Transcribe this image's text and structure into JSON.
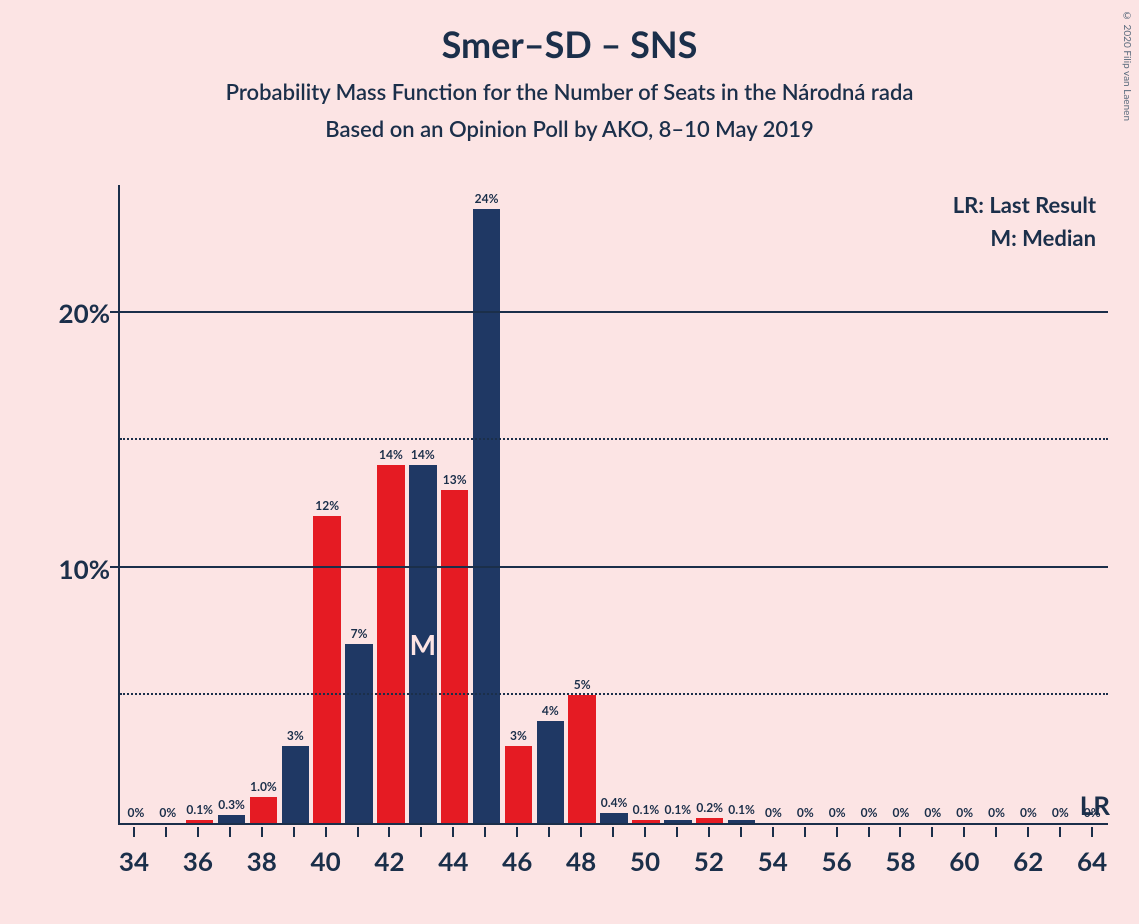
{
  "title": "Smer–SD – SNS",
  "title_fontsize": 36,
  "subtitle1": "Probability Mass Function for the Number of Seats in the Národná rada",
  "subtitle2": "Based on an Opinion Poll by AKO, 8–10 May 2019",
  "subtitle_fontsize": 22,
  "copyright": "© 2020 Filip van Laenen",
  "legend_lr": "LR: Last Result",
  "legend_m": "M: Median",
  "legend_fontsize": 22,
  "lr_marker": "LR",
  "median_marker": "M",
  "chart": {
    "type": "bar",
    "background_color": "#fce4e4",
    "axis_color": "#1b2f4a",
    "grid_solid_color": "#1b2f4a",
    "grid_dot_color": "#1b2f4a",
    "ylim": [
      0,
      25
    ],
    "y_major_ticks": [
      10,
      20
    ],
    "y_major_labels": [
      "10%",
      "20%"
    ],
    "y_minor_ticks": [
      5,
      15
    ],
    "y_label_fontsize": 26,
    "x_values": [
      34,
      35,
      36,
      37,
      38,
      39,
      40,
      41,
      42,
      43,
      44,
      45,
      46,
      47,
      48,
      49,
      50,
      51,
      52,
      53,
      54,
      55,
      56,
      57,
      58,
      59,
      60,
      61,
      62,
      63,
      64
    ],
    "x_label_step": 2,
    "x_label_fontsize": 26,
    "colors": {
      "red": "#e51b23",
      "blue": "#1f3864"
    },
    "median_index": 9,
    "bars": [
      {
        "v": 0,
        "c": "red",
        "l": "0%"
      },
      {
        "v": 0,
        "c": "blue",
        "l": "0%"
      },
      {
        "v": 0.1,
        "c": "red",
        "l": "0.1%"
      },
      {
        "v": 0.3,
        "c": "blue",
        "l": "0.3%"
      },
      {
        "v": 1.0,
        "c": "red",
        "l": "1.0%"
      },
      {
        "v": 3,
        "c": "blue",
        "l": "3%"
      },
      {
        "v": 12,
        "c": "red",
        "l": "12%"
      },
      {
        "v": 7,
        "c": "blue",
        "l": "7%"
      },
      {
        "v": 14,
        "c": "red",
        "l": "14%"
      },
      {
        "v": 14,
        "c": "blue",
        "l": "14%"
      },
      {
        "v": 13,
        "c": "red",
        "l": "13%"
      },
      {
        "v": 24,
        "c": "blue",
        "l": "24%"
      },
      {
        "v": 3,
        "c": "red",
        "l": "3%"
      },
      {
        "v": 4,
        "c": "blue",
        "l": "4%"
      },
      {
        "v": 5,
        "c": "red",
        "l": "5%"
      },
      {
        "v": 0.4,
        "c": "blue",
        "l": "0.4%"
      },
      {
        "v": 0.1,
        "c": "red",
        "l": "0.1%"
      },
      {
        "v": 0.1,
        "c": "blue",
        "l": "0.1%"
      },
      {
        "v": 0.2,
        "c": "red",
        "l": "0.2%"
      },
      {
        "v": 0.1,
        "c": "blue",
        "l": "0.1%"
      },
      {
        "v": 0,
        "c": "red",
        "l": "0%"
      },
      {
        "v": 0,
        "c": "blue",
        "l": "0%"
      },
      {
        "v": 0,
        "c": "red",
        "l": "0%"
      },
      {
        "v": 0,
        "c": "blue",
        "l": "0%"
      },
      {
        "v": 0,
        "c": "red",
        "l": "0%"
      },
      {
        "v": 0,
        "c": "blue",
        "l": "0%"
      },
      {
        "v": 0,
        "c": "red",
        "l": "0%"
      },
      {
        "v": 0,
        "c": "blue",
        "l": "0%"
      },
      {
        "v": 0,
        "c": "red",
        "l": "0%"
      },
      {
        "v": 0,
        "c": "blue",
        "l": "0%"
      },
      {
        "v": 0,
        "c": "red",
        "l": "0%"
      }
    ]
  }
}
